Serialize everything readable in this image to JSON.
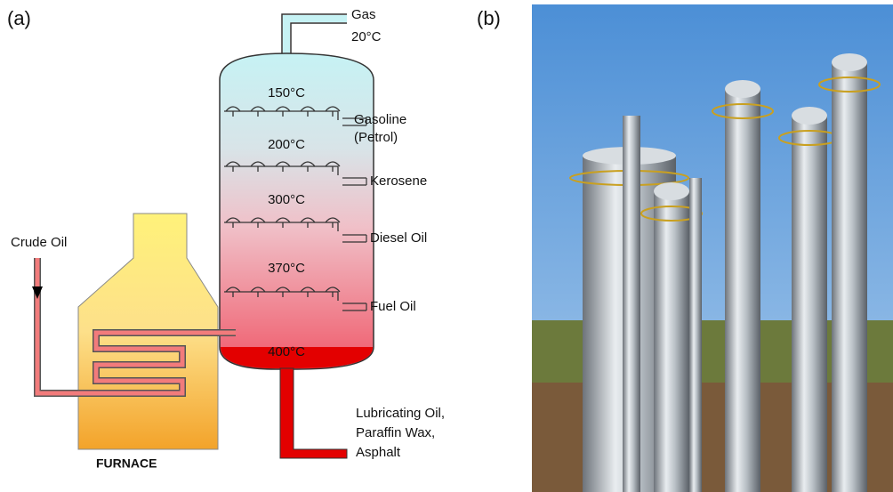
{
  "panel_a": {
    "label": "(a)",
    "top_outlet": {
      "name": "Gas",
      "temperature": "20°C"
    },
    "zones": [
      "150°C",
      "200°C",
      "300°C",
      "370°C",
      "400°C"
    ],
    "side_outlets": [
      [
        "Gasoline",
        "(Petrol)"
      ],
      [
        "Kerosene"
      ],
      [
        "Diesel Oil"
      ],
      [
        "Fuel Oil"
      ]
    ],
    "bottom_outlet": [
      "Lubricating Oil,",
      "Paraffin Wax,",
      "Asphalt"
    ],
    "feed": "Crude Oil",
    "furnace": "FURNACE"
  },
  "panel_b": {
    "label": "(b)"
  }
}
